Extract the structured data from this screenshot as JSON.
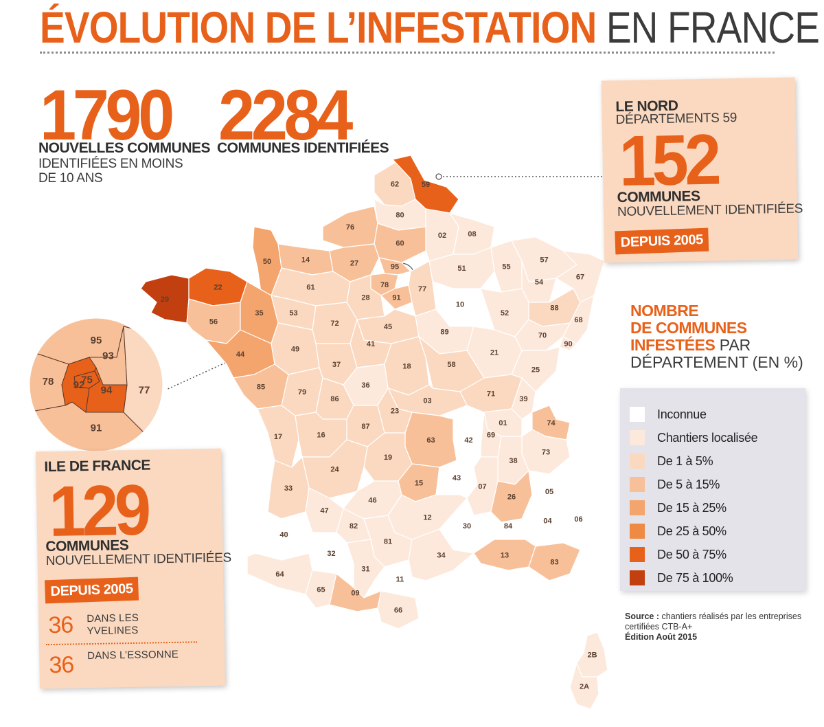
{
  "header": {
    "title_highlight": "ÉVOLUTION DE L’INFESTATION",
    "title_rest": "EN FRANCE"
  },
  "stats": {
    "new_communes": {
      "value": "1790",
      "label_bold": "NOUVELLES COMMUNES",
      "label_line2": "IDENTIFIÉES EN MOINS",
      "label_line3": "DE 10 ANS"
    },
    "identified_communes": {
      "value": "2284",
      "label_bold": "COMMUNES IDENTIFIÉES"
    }
  },
  "nord_box": {
    "title": "LE NORD",
    "subtitle": "DÉPARTEMENTS 59",
    "value": "152",
    "label_bold": "COMMUNES",
    "label": "NOUVELLEMENT IDENTIFIÉES",
    "badge": "DEPUIS 2005"
  },
  "idf_box": {
    "title": "ILE DE FRANCE",
    "value": "129",
    "label_bold": "COMMUNES",
    "label": "NOUVELLEMENT IDENTIFIÉES",
    "badge": "DEPUIS 2005",
    "details": [
      {
        "number": "36",
        "line1": "DANS LES",
        "line2": "YVELINES"
      },
      {
        "number": "36",
        "line1": "DANS L’ESSONNE",
        "line2": ""
      }
    ]
  },
  "legend": {
    "title_bold1": "NOMBRE",
    "title_bold2": "DE COMMUNES",
    "title_bold3": "INFESTÉES",
    "title_normal3": "PAR",
    "title_normal4": "DÉPARTEMENT (EN %)",
    "items": [
      {
        "label": "Inconnue",
        "color": "#ffffff"
      },
      {
        "label": "Chantiers localisée",
        "color": "#fde9dc"
      },
      {
        "label": "De 1 à 5%",
        "color": "#fbd9c0"
      },
      {
        "label": "De 5 à 15%",
        "color": "#f8c099"
      },
      {
        "label": "De 15 à 25%",
        "color": "#f4a46d"
      },
      {
        "label": "De 25 à 50%",
        "color": "#ef8a45"
      },
      {
        "label": "De 50 à 75%",
        "color": "#e8611a"
      },
      {
        "label": "De 75 à 100%",
        "color": "#c23f10"
      }
    ]
  },
  "source": {
    "label": "Source :",
    "text1": "chantiers réalisés par les entreprises",
    "text2": "certifiées CTB-A+",
    "edition": "Édition Août 2015"
  },
  "map": {
    "departments": [
      {
        "code": "62",
        "level": "c2"
      },
      {
        "code": "59",
        "level": "c6"
      },
      {
        "code": "80",
        "level": "c1"
      },
      {
        "code": "76",
        "level": "c3"
      },
      {
        "code": "60",
        "level": "c3"
      },
      {
        "code": "02",
        "level": "c1"
      },
      {
        "code": "08",
        "level": "c1"
      },
      {
        "code": "50",
        "level": "c4"
      },
      {
        "code": "14",
        "level": "c3"
      },
      {
        "code": "27",
        "level": "c3"
      },
      {
        "code": "95",
        "level": "c3"
      },
      {
        "code": "51",
        "level": "c1"
      },
      {
        "code": "55",
        "level": "c1"
      },
      {
        "code": "57",
        "level": "c1"
      },
      {
        "code": "67",
        "level": "c1"
      },
      {
        "code": "29",
        "level": "c7"
      },
      {
        "code": "22",
        "level": "c6"
      },
      {
        "code": "61",
        "level": "c2"
      },
      {
        "code": "78",
        "level": "c3"
      },
      {
        "code": "91",
        "level": "c3"
      },
      {
        "code": "77",
        "level": "c2"
      },
      {
        "code": "54",
        "level": "c1"
      },
      {
        "code": "28",
        "level": "c2"
      },
      {
        "code": "10",
        "level": "c0"
      },
      {
        "code": "88",
        "level": "c2"
      },
      {
        "code": "56",
        "level": "c3"
      },
      {
        "code": "35",
        "level": "c4"
      },
      {
        "code": "53",
        "level": "c2"
      },
      {
        "code": "72",
        "level": "c2"
      },
      {
        "code": "45",
        "level": "c2"
      },
      {
        "code": "52",
        "level": "c1"
      },
      {
        "code": "68",
        "level": "c1"
      },
      {
        "code": "89",
        "level": "c1"
      },
      {
        "code": "70",
        "level": "c1"
      },
      {
        "code": "90",
        "level": "c1"
      },
      {
        "code": "44",
        "level": "c4"
      },
      {
        "code": "49",
        "level": "c2"
      },
      {
        "code": "41",
        "level": "c2"
      },
      {
        "code": "37",
        "level": "c2"
      },
      {
        "code": "21",
        "level": "c1"
      },
      {
        "code": "25",
        "level": "c1"
      },
      {
        "code": "18",
        "level": "c2"
      },
      {
        "code": "58",
        "level": "c2"
      },
      {
        "code": "36",
        "level": "c1"
      },
      {
        "code": "85",
        "level": "c3"
      },
      {
        "code": "79",
        "level": "c2"
      },
      {
        "code": "86",
        "level": "c2"
      },
      {
        "code": "71",
        "level": "c2"
      },
      {
        "code": "39",
        "level": "c1"
      },
      {
        "code": "03",
        "level": "c2"
      },
      {
        "code": "01",
        "level": "c1"
      },
      {
        "code": "74",
        "level": "c3"
      },
      {
        "code": "23",
        "level": "c2"
      },
      {
        "code": "87",
        "level": "c2"
      },
      {
        "code": "17",
        "level": "c2"
      },
      {
        "code": "16",
        "level": "c2"
      },
      {
        "code": "42",
        "level": "c0"
      },
      {
        "code": "69",
        "level": "c1"
      },
      {
        "code": "63",
        "level": "c3"
      },
      {
        "code": "73",
        "level": "c1"
      },
      {
        "code": "19",
        "level": "c2"
      },
      {
        "code": "24",
        "level": "c2"
      },
      {
        "code": "15",
        "level": "c3"
      },
      {
        "code": "43",
        "level": "c0"
      },
      {
        "code": "38",
        "level": "c1"
      },
      {
        "code": "33",
        "level": "c2"
      },
      {
        "code": "47",
        "level": "c1"
      },
      {
        "code": "46",
        "level": "c1"
      },
      {
        "code": "07",
        "level": "c1"
      },
      {
        "code": "26",
        "level": "c3"
      },
      {
        "code": "05",
        "level": "c0"
      },
      {
        "code": "12",
        "level": "c1"
      },
      {
        "code": "82",
        "level": "c1"
      },
      {
        "code": "40",
        "level": "c0"
      },
      {
        "code": "81",
        "level": "c1"
      },
      {
        "code": "30",
        "level": "c0"
      },
      {
        "code": "84",
        "level": "c0"
      },
      {
        "code": "04",
        "level": "c0"
      },
      {
        "code": "06",
        "level": "c0"
      },
      {
        "code": "32",
        "level": "c0"
      },
      {
        "code": "34",
        "level": "c1"
      },
      {
        "code": "13",
        "level": "c3"
      },
      {
        "code": "83",
        "level": "c3"
      },
      {
        "code": "31",
        "level": "c1"
      },
      {
        "code": "64",
        "level": "c1"
      },
      {
        "code": "65",
        "level": "c1"
      },
      {
        "code": "09",
        "level": "c3"
      },
      {
        "code": "11",
        "level": "c0"
      },
      {
        "code": "66",
        "level": "c1"
      },
      {
        "code": "2B",
        "level": "c1"
      },
      {
        "code": "2A",
        "level": "c1"
      }
    ],
    "inset_departments": [
      {
        "code": "95",
        "level": "c3"
      },
      {
        "code": "93",
        "level": "c3"
      },
      {
        "code": "78",
        "level": "c3"
      },
      {
        "code": "75",
        "level": "c6"
      },
      {
        "code": "92",
        "level": "c6"
      },
      {
        "code": "94",
        "level": "c6"
      },
      {
        "code": "77",
        "level": "c2"
      },
      {
        "code": "91",
        "level": "c3"
      }
    ]
  }
}
